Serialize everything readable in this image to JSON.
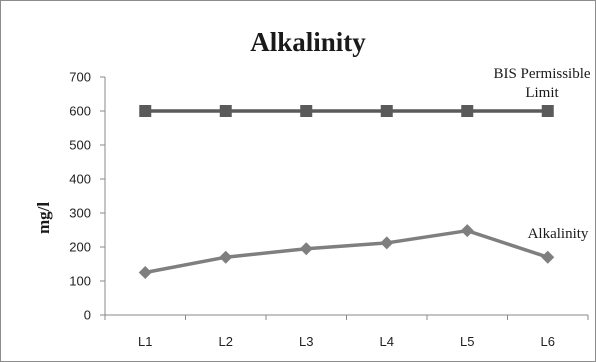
{
  "chart_data": {
    "type": "line",
    "title": "Alkalinity",
    "xlabel": "",
    "ylabel": "mg/l",
    "categories": [
      "L1",
      "L2",
      "L3",
      "L4",
      "L5",
      "L6"
    ],
    "ylim": [
      0,
      700
    ],
    "yticks": [
      0,
      100,
      200,
      300,
      400,
      500,
      600,
      700
    ],
    "grid": false,
    "legend": "none",
    "series": [
      {
        "name": "BIS Permissible Limit",
        "values": [
          600,
          600,
          600,
          600,
          600,
          600
        ],
        "marker": "square",
        "color": "#5a5a5a"
      },
      {
        "name": "Alkalinity",
        "values": [
          125,
          170,
          195,
          212,
          248,
          170
        ],
        "marker": "diamond",
        "color": "#7f7f7f"
      }
    ],
    "annotations": [
      {
        "text": "BIS Permissible",
        "series": 0
      },
      {
        "text": "Limit",
        "series": 0
      },
      {
        "text": "Alkalinity",
        "series": 1
      }
    ]
  }
}
